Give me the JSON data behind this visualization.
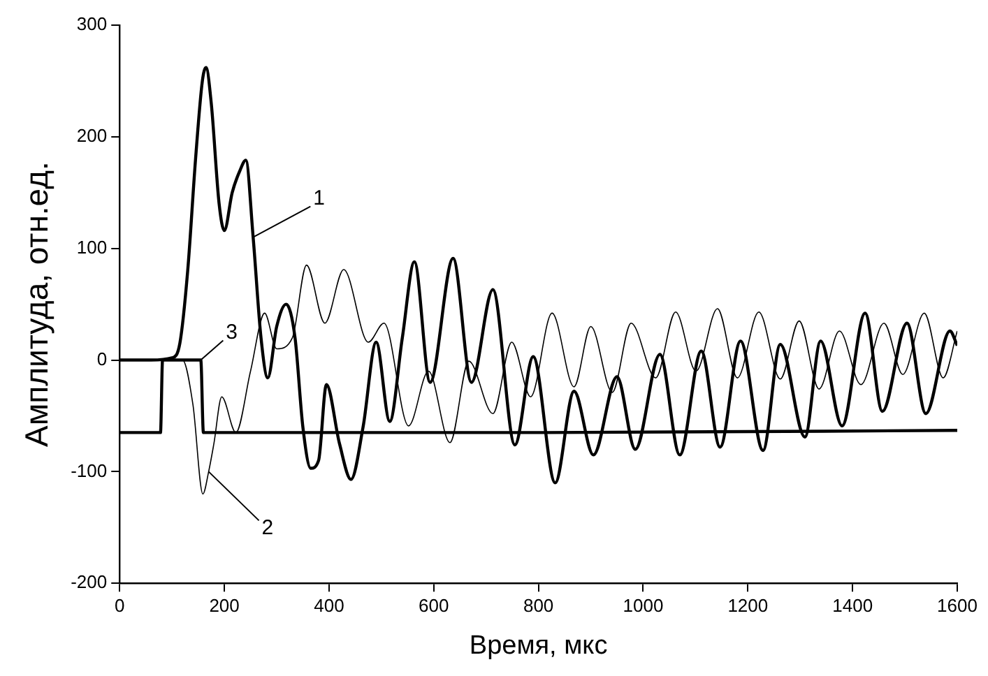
{
  "chart_data": {
    "type": "line",
    "xlabel": "Время, мкс",
    "ylabel": "Амплитуда, отн.ед.",
    "xlim": [
      0,
      1600
    ],
    "xticks": [
      0,
      200,
      400,
      600,
      800,
      1000,
      1200,
      1400,
      1600
    ],
    "ylim": [
      -200,
      300
    ],
    "yticks": [
      -200,
      -100,
      0,
      100,
      200,
      300
    ],
    "grid": false,
    "legend": false,
    "marker": "none",
    "line_style": "solid",
    "annotations": [
      {
        "text": "1",
        "x": 255,
        "y": 110
      },
      {
        "text": "2",
        "x": 170,
        "y": -100
      },
      {
        "text": "3",
        "x": 155,
        "y": 0
      }
    ],
    "series": [
      {
        "color": "#000000",
        "x": [
          0,
          60,
          100,
          115,
          130,
          145,
          158,
          165,
          175,
          190,
          200,
          215,
          230,
          241,
          255,
          270,
          283,
          300,
          318,
          335,
          350,
          365,
          380,
          395,
          420,
          442,
          465,
          490,
          516,
          540,
          563,
          593,
          637,
          672,
          713,
          755,
          790,
          832,
          868,
          905,
          950,
          985,
          1032,
          1070,
          1111,
          1147,
          1186,
          1229,
          1262,
          1309,
          1339,
          1380,
          1424,
          1457,
          1504,
          1540,
          1586,
          1600
        ],
        "values": [
          0,
          0,
          2,
          15,
          80,
          180,
          250,
          262,
          230,
          140,
          116,
          150,
          170,
          179,
          110,
          20,
          -16,
          30,
          50,
          20,
          -60,
          -97,
          -90,
          -22,
          -75,
          -107,
          -60,
          16,
          -55,
          20,
          88,
          -20,
          91,
          -20,
          63,
          -76,
          3,
          -110,
          -28,
          -85,
          -15,
          -80,
          5,
          -85,
          8,
          -78,
          17,
          -81,
          14,
          -69,
          17,
          -59,
          42,
          -46,
          33,
          -48,
          26,
          13
        ]
      },
      {
        "color": "#000000",
        "x": [
          0,
          60,
          120,
          140,
          159,
          170,
          180,
          195,
          222,
          250,
          277,
          300,
          330,
          357,
          392,
          428,
          475,
          505,
          552,
          590,
          631,
          667,
          713,
          749,
          785,
          826,
          868,
          900,
          941,
          977,
          1024,
          1062,
          1101,
          1142,
          1180,
          1221,
          1262,
          1298,
          1336,
          1375,
          1416,
          1460,
          1496,
          1537,
          1573,
          1600
        ],
        "values": [
          0,
          0,
          0,
          -40,
          -120,
          -100,
          -75,
          -33,
          -65,
          -10,
          42,
          10,
          20,
          85,
          33,
          81,
          16,
          33,
          -59,
          -10,
          -74,
          -1,
          -48,
          16,
          -33,
          42,
          -24,
          30,
          -29,
          33,
          -16,
          43,
          -10,
          46,
          -16,
          43,
          -17,
          35,
          -26,
          26,
          -22,
          33,
          -13,
          42,
          -16,
          26
        ]
      },
      {
        "color": "#000000",
        "x": [
          0,
          78,
          82,
          155,
          160,
          800,
          1600
        ],
        "values": [
          -65,
          -65,
          0,
          0,
          -65,
          -65,
          -63
        ]
      }
    ]
  }
}
